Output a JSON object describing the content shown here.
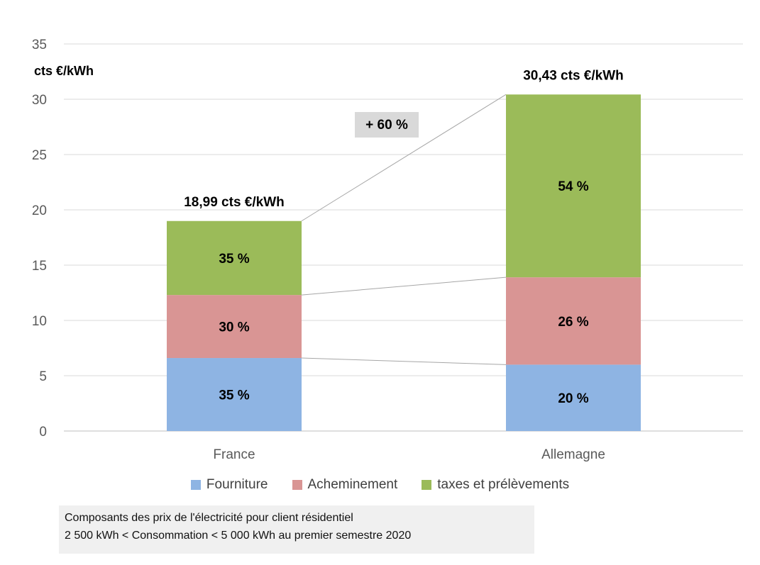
{
  "chart_data": {
    "type": "bar",
    "stacked": true,
    "title": "",
    "ylabel": "cts €/kWh",
    "ylim": [
      0,
      35
    ],
    "yticks": [
      0,
      5,
      10,
      15,
      20,
      25,
      30,
      35
    ],
    "grid": true,
    "legend_position": "bottom",
    "categories": [
      "France",
      "Allemagne"
    ],
    "series": [
      {
        "name": "Fourniture",
        "color": "#8eb4e3",
        "values": [
          6.6,
          6.0
        ],
        "labels": [
          "35 %",
          "20 %"
        ]
      },
      {
        "name": "Acheminement",
        "color": "#d99594",
        "values": [
          5.7,
          7.9
        ],
        "labels": [
          "30 %",
          "26 %"
        ]
      },
      {
        "name": "taxes et prélèvements",
        "color": "#9bbb59",
        "values": [
          6.69,
          16.53
        ],
        "labels": [
          "35 %",
          "54 %"
        ]
      }
    ],
    "totals": [
      18.99,
      30.43
    ],
    "total_labels": [
      "18,99 cts €/kWh",
      "30,43 cts €/kWh"
    ],
    "annotation": "+ 60 %"
  },
  "note": {
    "line1": "Composants des prix de l'électricité pour client résidentiel",
    "line2": "2 500 kWh < Consommation < 5 000 kWh au premier semestre 2020"
  }
}
